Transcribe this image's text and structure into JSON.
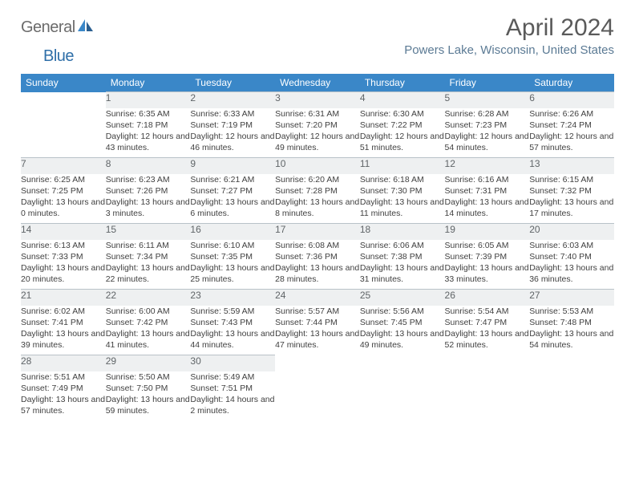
{
  "logo": {
    "word1": "General",
    "word2": "Blue"
  },
  "title": "April 2024",
  "location": "Powers Lake, Wisconsin, United States",
  "colors": {
    "header_bg": "#3a87c8",
    "header_text": "#ffffff",
    "daynum_bg": "#eef0f1",
    "daynum_border": "#b9c2c8",
    "body_text": "#404040",
    "logo_blue": "#2f6fa8",
    "location_text": "#5b7a94"
  },
  "weekdays": [
    "Sunday",
    "Monday",
    "Tuesday",
    "Wednesday",
    "Thursday",
    "Friday",
    "Saturday"
  ],
  "weeks": [
    [
      null,
      {
        "n": "1",
        "sr": "Sunrise: 6:35 AM",
        "ss": "Sunset: 7:18 PM",
        "dl": "Daylight: 12 hours and 43 minutes."
      },
      {
        "n": "2",
        "sr": "Sunrise: 6:33 AM",
        "ss": "Sunset: 7:19 PM",
        "dl": "Daylight: 12 hours and 46 minutes."
      },
      {
        "n": "3",
        "sr": "Sunrise: 6:31 AM",
        "ss": "Sunset: 7:20 PM",
        "dl": "Daylight: 12 hours and 49 minutes."
      },
      {
        "n": "4",
        "sr": "Sunrise: 6:30 AM",
        "ss": "Sunset: 7:22 PM",
        "dl": "Daylight: 12 hours and 51 minutes."
      },
      {
        "n": "5",
        "sr": "Sunrise: 6:28 AM",
        "ss": "Sunset: 7:23 PM",
        "dl": "Daylight: 12 hours and 54 minutes."
      },
      {
        "n": "6",
        "sr": "Sunrise: 6:26 AM",
        "ss": "Sunset: 7:24 PM",
        "dl": "Daylight: 12 hours and 57 minutes."
      }
    ],
    [
      {
        "n": "7",
        "sr": "Sunrise: 6:25 AM",
        "ss": "Sunset: 7:25 PM",
        "dl": "Daylight: 13 hours and 0 minutes."
      },
      {
        "n": "8",
        "sr": "Sunrise: 6:23 AM",
        "ss": "Sunset: 7:26 PM",
        "dl": "Daylight: 13 hours and 3 minutes."
      },
      {
        "n": "9",
        "sr": "Sunrise: 6:21 AM",
        "ss": "Sunset: 7:27 PM",
        "dl": "Daylight: 13 hours and 6 minutes."
      },
      {
        "n": "10",
        "sr": "Sunrise: 6:20 AM",
        "ss": "Sunset: 7:28 PM",
        "dl": "Daylight: 13 hours and 8 minutes."
      },
      {
        "n": "11",
        "sr": "Sunrise: 6:18 AM",
        "ss": "Sunset: 7:30 PM",
        "dl": "Daylight: 13 hours and 11 minutes."
      },
      {
        "n": "12",
        "sr": "Sunrise: 6:16 AM",
        "ss": "Sunset: 7:31 PM",
        "dl": "Daylight: 13 hours and 14 minutes."
      },
      {
        "n": "13",
        "sr": "Sunrise: 6:15 AM",
        "ss": "Sunset: 7:32 PM",
        "dl": "Daylight: 13 hours and 17 minutes."
      }
    ],
    [
      {
        "n": "14",
        "sr": "Sunrise: 6:13 AM",
        "ss": "Sunset: 7:33 PM",
        "dl": "Daylight: 13 hours and 20 minutes."
      },
      {
        "n": "15",
        "sr": "Sunrise: 6:11 AM",
        "ss": "Sunset: 7:34 PM",
        "dl": "Daylight: 13 hours and 22 minutes."
      },
      {
        "n": "16",
        "sr": "Sunrise: 6:10 AM",
        "ss": "Sunset: 7:35 PM",
        "dl": "Daylight: 13 hours and 25 minutes."
      },
      {
        "n": "17",
        "sr": "Sunrise: 6:08 AM",
        "ss": "Sunset: 7:36 PM",
        "dl": "Daylight: 13 hours and 28 minutes."
      },
      {
        "n": "18",
        "sr": "Sunrise: 6:06 AM",
        "ss": "Sunset: 7:38 PM",
        "dl": "Daylight: 13 hours and 31 minutes."
      },
      {
        "n": "19",
        "sr": "Sunrise: 6:05 AM",
        "ss": "Sunset: 7:39 PM",
        "dl": "Daylight: 13 hours and 33 minutes."
      },
      {
        "n": "20",
        "sr": "Sunrise: 6:03 AM",
        "ss": "Sunset: 7:40 PM",
        "dl": "Daylight: 13 hours and 36 minutes."
      }
    ],
    [
      {
        "n": "21",
        "sr": "Sunrise: 6:02 AM",
        "ss": "Sunset: 7:41 PM",
        "dl": "Daylight: 13 hours and 39 minutes."
      },
      {
        "n": "22",
        "sr": "Sunrise: 6:00 AM",
        "ss": "Sunset: 7:42 PM",
        "dl": "Daylight: 13 hours and 41 minutes."
      },
      {
        "n": "23",
        "sr": "Sunrise: 5:59 AM",
        "ss": "Sunset: 7:43 PM",
        "dl": "Daylight: 13 hours and 44 minutes."
      },
      {
        "n": "24",
        "sr": "Sunrise: 5:57 AM",
        "ss": "Sunset: 7:44 PM",
        "dl": "Daylight: 13 hours and 47 minutes."
      },
      {
        "n": "25",
        "sr": "Sunrise: 5:56 AM",
        "ss": "Sunset: 7:45 PM",
        "dl": "Daylight: 13 hours and 49 minutes."
      },
      {
        "n": "26",
        "sr": "Sunrise: 5:54 AM",
        "ss": "Sunset: 7:47 PM",
        "dl": "Daylight: 13 hours and 52 minutes."
      },
      {
        "n": "27",
        "sr": "Sunrise: 5:53 AM",
        "ss": "Sunset: 7:48 PM",
        "dl": "Daylight: 13 hours and 54 minutes."
      }
    ],
    [
      {
        "n": "28",
        "sr": "Sunrise: 5:51 AM",
        "ss": "Sunset: 7:49 PM",
        "dl": "Daylight: 13 hours and 57 minutes."
      },
      {
        "n": "29",
        "sr": "Sunrise: 5:50 AM",
        "ss": "Sunset: 7:50 PM",
        "dl": "Daylight: 13 hours and 59 minutes."
      },
      {
        "n": "30",
        "sr": "Sunrise: 5:49 AM",
        "ss": "Sunset: 7:51 PM",
        "dl": "Daylight: 14 hours and 2 minutes."
      },
      null,
      null,
      null,
      null
    ]
  ]
}
